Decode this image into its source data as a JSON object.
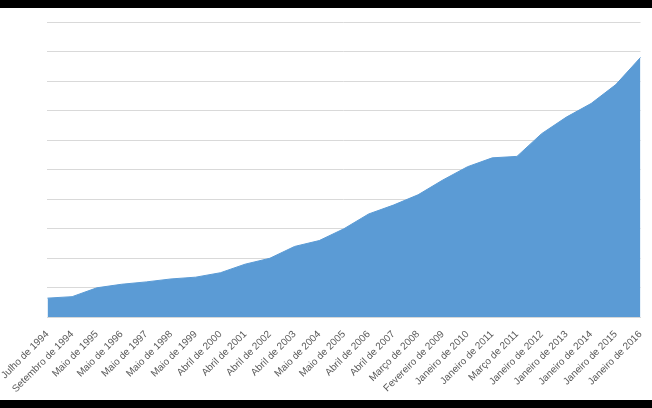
{
  "chart_data": {
    "type": "area",
    "categories": [
      "Julho de 1994",
      "Setembro de 1994",
      "Maio de 1995",
      "Maio de 1996",
      "Maio de 1997",
      "Maio de 1998",
      "Maio de 1999",
      "Abril de 2000",
      "Abril de 2001",
      "Abril de 2002",
      "Abril de 2003",
      "Maio de 2004",
      "Maio de 2005",
      "Abril de 2006",
      "Abril de 2007",
      "Março de 2008",
      "Fevereiro de 2009",
      "Janeiro de 2010",
      "Janeiro de 2011",
      "Março de 2011",
      "Janeiro de 2012",
      "Janeiro de 2013",
      "Janeiro de 2014",
      "Janeiro de 2015",
      "Janeiro de 2016"
    ],
    "values": [
      65,
      70,
      100,
      112,
      120,
      130,
      136,
      151,
      180,
      200,
      240,
      260,
      300,
      350,
      380,
      415,
      465,
      510,
      540,
      545,
      622,
      678,
      724,
      788,
      880
    ],
    "color": "#5b9bd5",
    "ylim": [
      0,
      1000
    ],
    "yticks": [
      0,
      100,
      200,
      300,
      400,
      500,
      600,
      700,
      800,
      900,
      1000
    ],
    "grid": true,
    "tick_labels": "x"
  }
}
